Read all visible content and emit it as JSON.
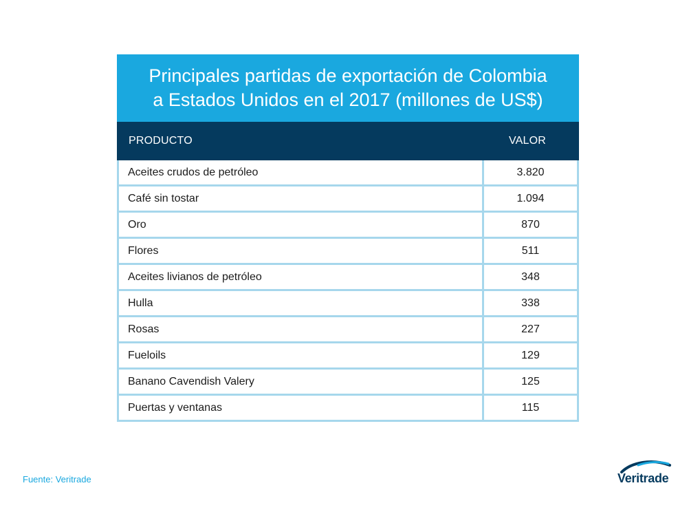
{
  "chart_data": {
    "type": "table",
    "title_lines": [
      "Principales partidas de exportación de Colombia",
      "a Estados Unidos en el 2017 (millones de US$)"
    ],
    "columns": [
      "PRODUCTO",
      "VALOR"
    ],
    "rows": [
      {
        "product": "Aceites crudos de petróleo",
        "value": "3.820"
      },
      {
        "product": "Café sin tostar",
        "value": "1.094"
      },
      {
        "product": "Oro",
        "value": "870"
      },
      {
        "product": "Flores",
        "value": "511"
      },
      {
        "product": "Aceites livianos de petróleo",
        "value": "348"
      },
      {
        "product": "Hulla",
        "value": "338"
      },
      {
        "product": "Rosas",
        "value": "227"
      },
      {
        "product": "Fueloils",
        "value": "129"
      },
      {
        "product": "Banano Cavendish Valery",
        "value": "125"
      },
      {
        "product": "Puertas y ventanas",
        "value": "115"
      }
    ]
  },
  "footer": {
    "source": "Fuente: Veritrade"
  },
  "logo": {
    "text": "Veritrade",
    "icon": "swoosh-logo-icon"
  },
  "colors": {
    "title_band": "#1aa8df",
    "header_band": "#053a5e",
    "grid": "#a6d7ec"
  }
}
